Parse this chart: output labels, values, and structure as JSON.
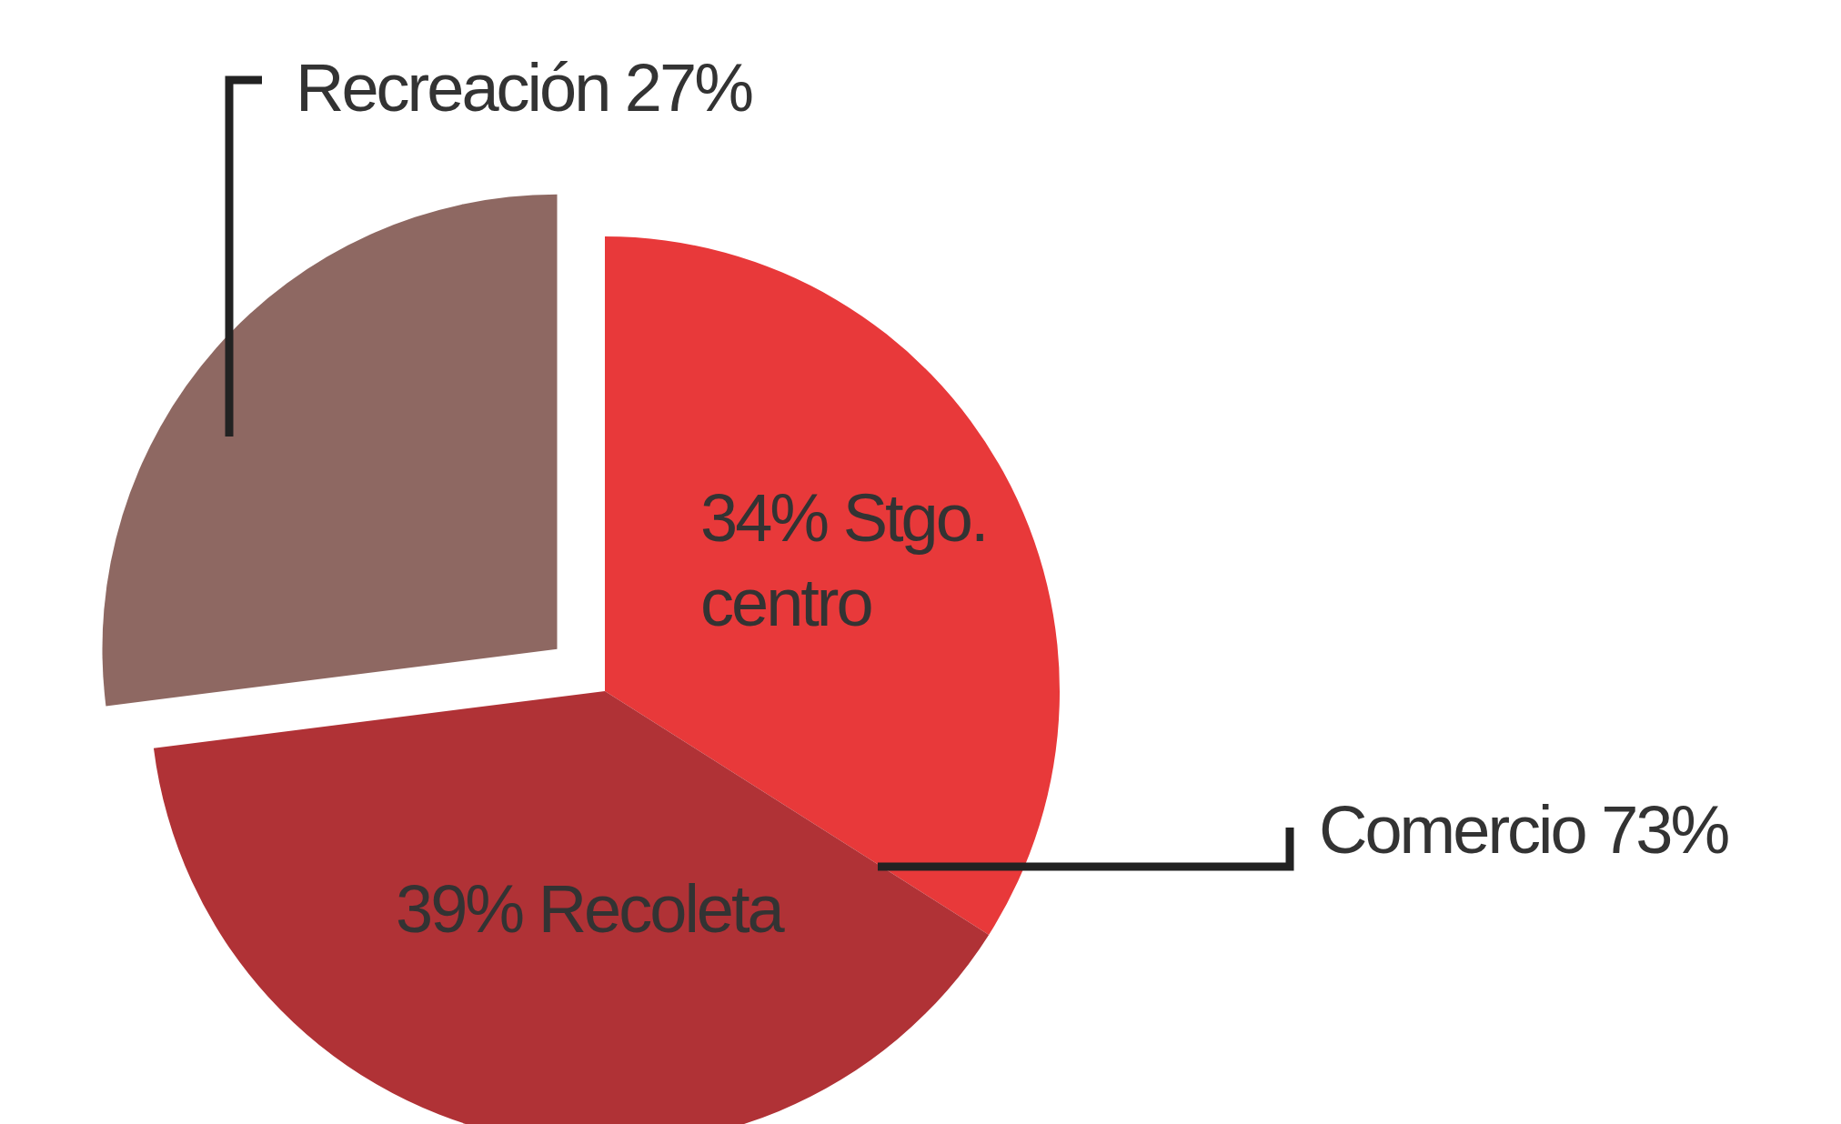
{
  "chart_data": {
    "type": "pie",
    "categories": [
      "34% Stgo. centro",
      "39% Recoleta",
      "Recreación 27%"
    ],
    "values": [
      34,
      39,
      27
    ],
    "colors": [
      "#e8393a",
      "#b03236",
      "#8e6862"
    ],
    "annotations": [
      "Comercio 73%"
    ]
  }
}
